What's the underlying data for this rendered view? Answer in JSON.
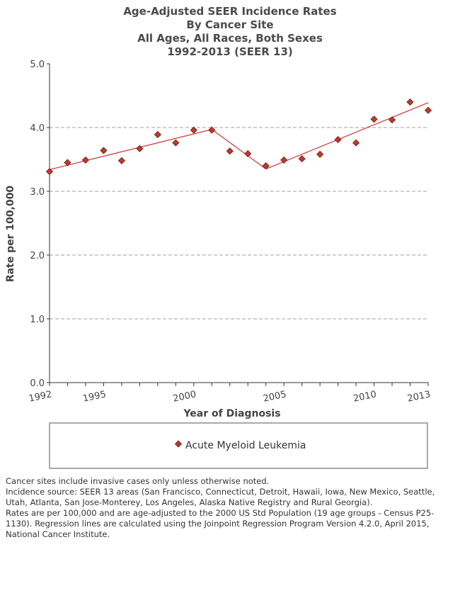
{
  "chart_data": {
    "type": "scatter",
    "title_lines": [
      "Age-Adjusted SEER Incidence Rates",
      "By Cancer Site",
      "All Ages, All Races, Both Sexes",
      "1992-2013  (SEER 13)"
    ],
    "xlabel": "Year of Diagnosis",
    "ylabel": "Rate per 100,000",
    "xlim": [
      1992,
      2013
    ],
    "ylim": [
      0,
      5
    ],
    "x_ticks": [
      1992,
      1995,
      2000,
      2005,
      2010,
      2013
    ],
    "y_ticks": [
      "0.0",
      "1.0",
      "2.0",
      "3.0",
      "4.0",
      "5.0"
    ],
    "grid": "horizontal dashed",
    "legend_position": "bottom",
    "series": [
      {
        "name": "Acute Myeloid Leukemia",
        "color": "#c0392b",
        "marker": "diamond",
        "x": [
          1992,
          1993,
          1994,
          1995,
          1996,
          1997,
          1998,
          1999,
          2000,
          2001,
          2002,
          2003,
          2004,
          2005,
          2006,
          2007,
          2008,
          2009,
          2010,
          2011,
          2012,
          2013
        ],
        "values": [
          3.31,
          3.45,
          3.49,
          3.64,
          3.48,
          3.67,
          3.89,
          3.76,
          3.96,
          3.96,
          3.63,
          3.59,
          3.4,
          3.49,
          3.51,
          3.58,
          3.81,
          3.76,
          4.13,
          4.12,
          4.4,
          4.27
        ]
      }
    ],
    "regression_line": {
      "color": "#d03030",
      "points": [
        [
          1992,
          3.34
        ],
        [
          2001,
          3.97
        ],
        [
          2004,
          3.35
        ],
        [
          2013,
          4.39
        ]
      ]
    }
  },
  "footnotes": [
    "Cancer sites include invasive cases only unless otherwise noted.",
    "Incidence source: SEER 13 areas (San Francisco, Connecticut, Detroit, Hawaii, Iowa, New Mexico, Seattle, Utah, Atlanta, San Jose-Monterey, Los Angeles, Alaska Native Registry and Rural Georgia).",
    "Rates are per 100,000 and are age-adjusted to the 2000 US Std Population (19 age groups - Census P25-1130). Regression lines are calculated using the Joinpoint Regression Program Version 4.2.0, April 2015, National Cancer Institute."
  ]
}
